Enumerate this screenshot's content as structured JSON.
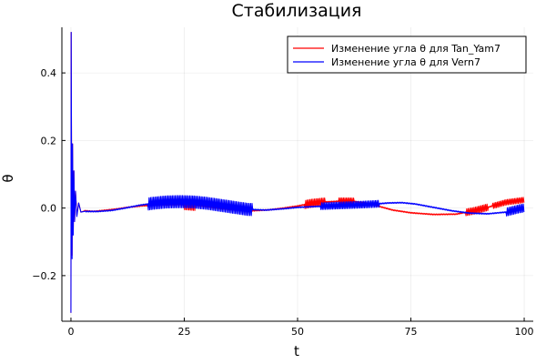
{
  "chart_data": {
    "type": "line",
    "title": "Стабилизация",
    "xlabel": "t",
    "ylabel": "θ",
    "xlim": [
      -2,
      102
    ],
    "ylim": [
      -0.335,
      0.535
    ],
    "xticks": [
      0,
      25,
      50,
      75,
      100
    ],
    "xtick_labels": [
      "0",
      "25",
      "50",
      "75",
      "100"
    ],
    "yticks": [
      -0.2,
      0.0,
      0.2,
      0.4
    ],
    "ytick_labels": [
      "−0.2",
      "0.0",
      "0.2",
      "0.4"
    ],
    "grid": true,
    "legend_position": "top-right",
    "series": [
      {
        "name": "Изменение угла θ для Tan_Yam7",
        "color": "#ff0000",
        "points": [
          [
            0,
            -0.31
          ],
          [
            0.05,
            0.52
          ],
          [
            0.15,
            0.05
          ],
          [
            0.25,
            -0.14
          ],
          [
            0.35,
            0.19
          ],
          [
            0.5,
            -0.07
          ],
          [
            0.65,
            0.11
          ],
          [
            0.8,
            -0.04
          ],
          [
            1.0,
            0.05
          ],
          [
            1.3,
            -0.02
          ],
          [
            1.7,
            0.015
          ],
          [
            2.2,
            -0.012
          ],
          [
            3,
            -0.008
          ],
          [
            5,
            -0.01
          ],
          [
            8,
            -0.006
          ],
          [
            10,
            -0.003
          ],
          [
            13,
            0.003
          ],
          [
            16,
            0.007
          ],
          [
            20,
            0.009
          ],
          [
            25,
            0.01
          ],
          [
            28,
            0.007
          ],
          [
            32,
            0.0
          ],
          [
            36,
            -0.006
          ],
          [
            40,
            -0.008
          ],
          [
            44,
            -0.005
          ],
          [
            47,
            0.0
          ],
          [
            50,
            0.006
          ],
          [
            53,
            0.014
          ],
          [
            56,
            0.018
          ],
          [
            59,
            0.02
          ],
          [
            62,
            0.02
          ],
          [
            65,
            0.016
          ],
          [
            68,
            0.005
          ],
          [
            71,
            -0.006
          ],
          [
            75,
            -0.014
          ],
          [
            80,
            -0.019
          ],
          [
            85,
            -0.018
          ],
          [
            89,
            -0.008
          ],
          [
            93,
            0.006
          ],
          [
            96,
            0.017
          ],
          [
            100,
            0.024
          ]
        ],
        "oscillation_bands": [
          {
            "t": [
              25,
              27.5
            ],
            "amplitude": 0.015
          },
          {
            "t": [
              51.5,
              56
            ],
            "amplitude": 0.012
          },
          {
            "t": [
              59,
              62.5
            ],
            "amplitude": 0.01
          },
          {
            "t": [
              87,
              92
            ],
            "amplitude": 0.01
          },
          {
            "t": [
              93,
              100
            ],
            "amplitude": 0.008
          }
        ]
      },
      {
        "name": "Изменение угла θ для Vern7",
        "color": "#0000ff",
        "points": [
          [
            0,
            -0.31
          ],
          [
            0.05,
            0.52
          ],
          [
            0.15,
            0.04
          ],
          [
            0.25,
            -0.15
          ],
          [
            0.35,
            0.19
          ],
          [
            0.5,
            -0.08
          ],
          [
            0.65,
            0.11
          ],
          [
            0.8,
            -0.04
          ],
          [
            1.0,
            0.05
          ],
          [
            1.3,
            -0.025
          ],
          [
            1.7,
            0.015
          ],
          [
            2.2,
            -0.012
          ],
          [
            3,
            -0.01
          ],
          [
            6,
            -0.01
          ],
          [
            9,
            -0.007
          ],
          [
            12,
            0.0
          ],
          [
            15,
            0.008
          ],
          [
            18,
            0.014
          ],
          [
            21,
            0.018
          ],
          [
            24,
            0.019
          ],
          [
            27,
            0.018
          ],
          [
            30,
            0.014
          ],
          [
            33,
            0.008
          ],
          [
            36,
            0.002
          ],
          [
            39,
            -0.004
          ],
          [
            43,
            -0.006
          ],
          [
            47,
            -0.002
          ],
          [
            50,
            0.002
          ],
          [
            53,
            0.004
          ],
          [
            56,
            0.006
          ],
          [
            60,
            0.008
          ],
          [
            64,
            0.01
          ],
          [
            67,
            0.012
          ],
          [
            70,
            0.015
          ],
          [
            73,
            0.016
          ],
          [
            76,
            0.012
          ],
          [
            80,
            0.002
          ],
          [
            84,
            -0.008
          ],
          [
            88,
            -0.015
          ],
          [
            92,
            -0.017
          ],
          [
            96,
            -0.012
          ],
          [
            99,
            -0.002
          ],
          [
            100,
            0.0
          ]
        ],
        "oscillation_bands": [
          {
            "t": [
              17,
              40
            ],
            "amplitude": 0.018
          },
          {
            "t": [
              55,
              68
            ],
            "amplitude": 0.01
          },
          {
            "t": [
              96,
              100
            ],
            "amplitude": 0.012
          }
        ]
      }
    ]
  }
}
